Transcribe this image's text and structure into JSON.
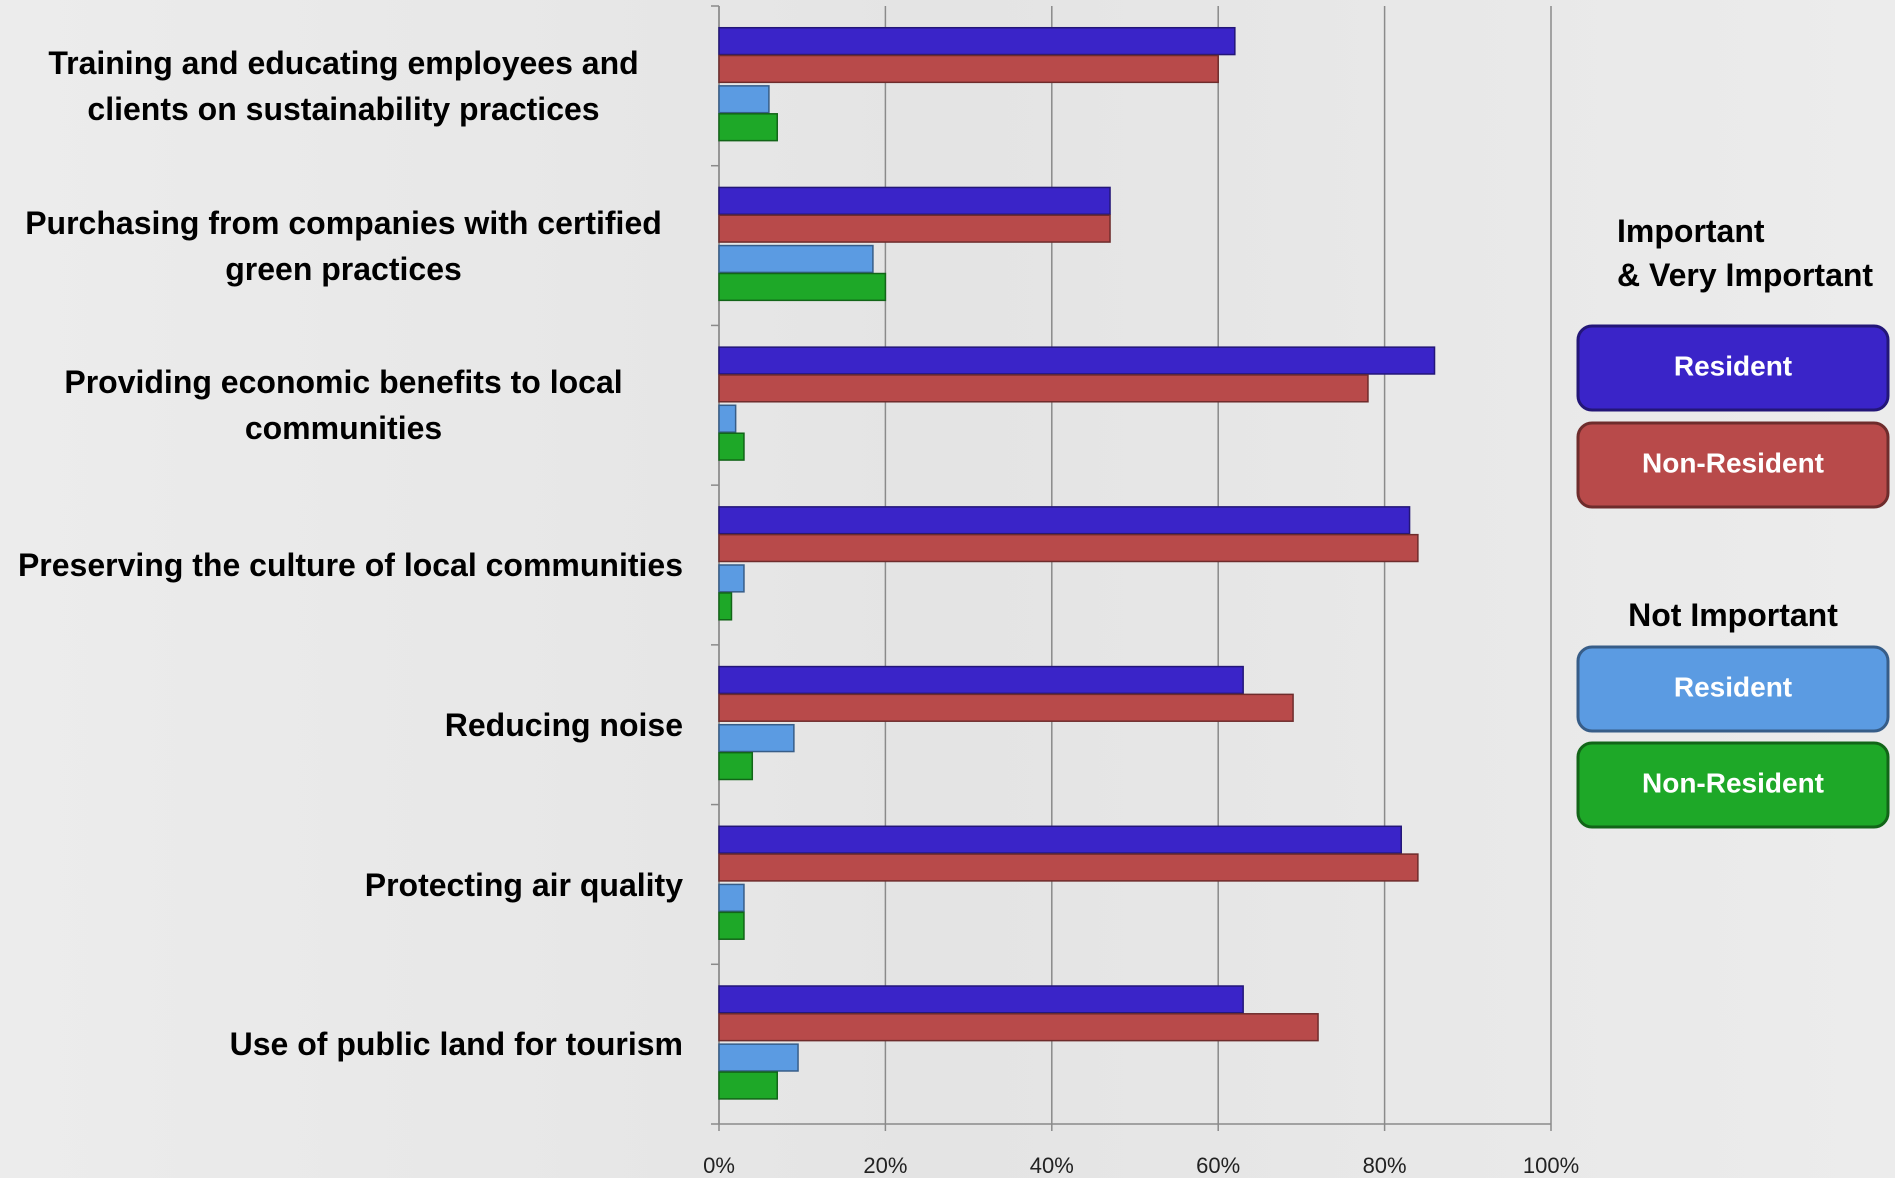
{
  "chart_data": {
    "type": "hbar",
    "categories": [
      "Training and educating employees and clients on sustainability practices",
      "Purchasing from companies with certified green practices",
      "Providing economic benefits to local communities",
      "Preserving the culture of local communities",
      "Reducing noise",
      "Protecting air quality",
      "Use of public land for tourism"
    ],
    "series": [
      {
        "name": "Resident",
        "color": "#3a24c8",
        "values": [
          62,
          47,
          86,
          83,
          63,
          82,
          63
        ]
      },
      {
        "name": "Non-Resident",
        "color": "#b84a4a",
        "values": [
          60,
          47,
          78,
          84,
          69,
          84,
          72
        ]
      },
      {
        "name": "Resident",
        "color": "#5b9be2",
        "values": [
          6,
          18.5,
          2,
          3,
          9,
          3,
          9.5
        ]
      },
      {
        "name": "Non-Resident",
        "color": "#1ea828",
        "values": [
          7,
          20,
          3,
          1.5,
          4,
          3,
          7
        ]
      }
    ],
    "legend_groups": [
      {
        "title": [
          "Important",
          "& Very Important"
        ],
        "series": [
          0,
          1
        ]
      },
      {
        "title": [
          "Not Important"
        ],
        "series": [
          2,
          3
        ]
      }
    ],
    "xlim": [
      0,
      100
    ],
    "xticks": [
      {
        "value": 0,
        "label": "0%"
      },
      {
        "value": 20,
        "label": "20%"
      },
      {
        "value": 40,
        "label": "40%"
      },
      {
        "value": 60,
        "label": "60%"
      },
      {
        "value": 80,
        "label": "80%"
      },
      {
        "value": 100,
        "label": "100%"
      }
    ],
    "grid": true
  }
}
